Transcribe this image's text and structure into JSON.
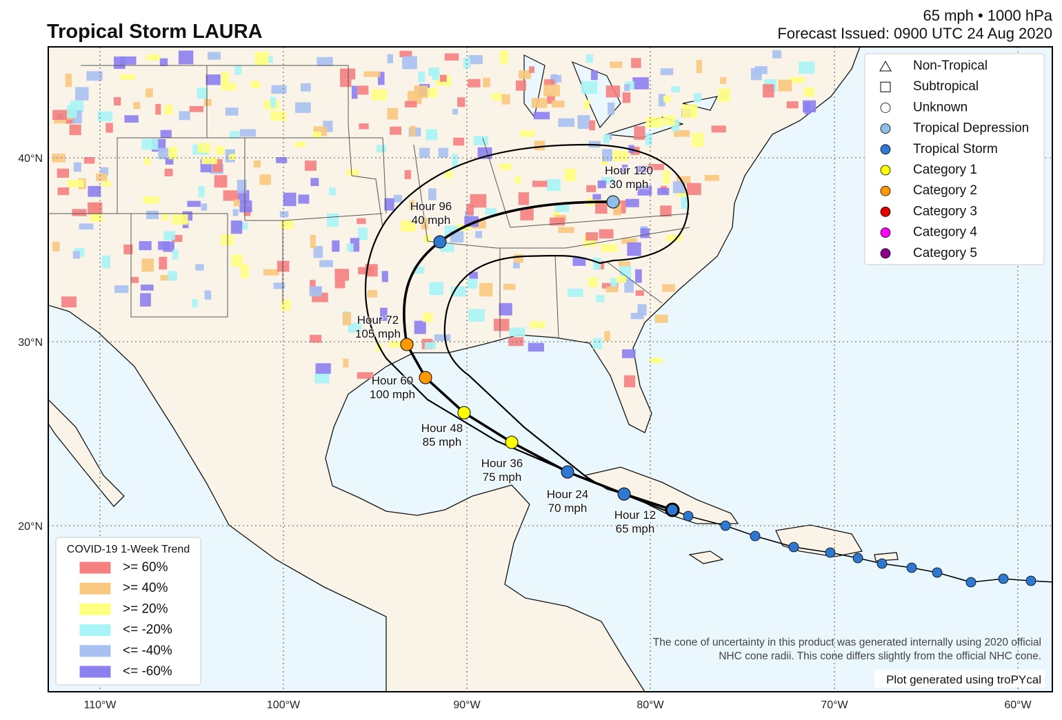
{
  "header": {
    "title": "Tropical Storm LAURA",
    "intensity": "65 mph • 1000 hPa",
    "issued": "Forecast Issued: 0900 UTC 24 Aug 2020"
  },
  "axes": {
    "latitudes": [
      "40°N",
      "30°N",
      "20°N"
    ],
    "longitudes": [
      "110°W",
      "100°W",
      "90°W",
      "80°W",
      "70°W",
      "60°W"
    ]
  },
  "forecast_points": [
    {
      "hour": "Hour 12",
      "wind": "65 mph",
      "color": "#2f78cf"
    },
    {
      "hour": "Hour 24",
      "wind": "70 mph",
      "color": "#2f78cf"
    },
    {
      "hour": "Hour 36",
      "wind": "75 mph",
      "color": "#ffff00"
    },
    {
      "hour": "Hour 48",
      "wind": "85 mph",
      "color": "#ffff00"
    },
    {
      "hour": "Hour 60",
      "wind": "100 mph",
      "color": "#ff9900"
    },
    {
      "hour": "Hour 72",
      "wind": "105 mph",
      "color": "#ff9900"
    },
    {
      "hour": "Hour 96",
      "wind": "40 mph",
      "color": "#2f78cf"
    },
    {
      "hour": "Hour 120",
      "wind": "30 mph",
      "color": "#8fbde8"
    }
  ],
  "storm_legend": [
    {
      "label": "Non-Tropical",
      "marker": "triangle",
      "color": "#ffffff"
    },
    {
      "label": "Subtropical",
      "marker": "square",
      "color": "#ffffff"
    },
    {
      "label": "Unknown",
      "marker": "circle",
      "color": "#ffffff"
    },
    {
      "label": "Tropical Depression",
      "marker": "circle",
      "color": "#8fbde8"
    },
    {
      "label": "Tropical Storm",
      "marker": "circle",
      "color": "#2f78cf"
    },
    {
      "label": "Category 1",
      "marker": "circle",
      "color": "#ffff00"
    },
    {
      "label": "Category 2",
      "marker": "circle",
      "color": "#ff9900"
    },
    {
      "label": "Category 3",
      "marker": "circle",
      "color": "#e00000"
    },
    {
      "label": "Category 4",
      "marker": "circle",
      "color": "#ff00ff"
    },
    {
      "label": "Category 5",
      "marker": "circle",
      "color": "#8b008b"
    }
  ],
  "covid_legend": {
    "title": "COVID-19 1-Week Trend",
    "items": [
      {
        "label": ">= 60%",
        "color": "#f48080"
      },
      {
        "label": ">= 40%",
        "color": "#f8c880"
      },
      {
        "label": ">= 20%",
        "color": "#ffff80"
      },
      {
        "label": "<= -20%",
        "color": "#a8f4f6"
      },
      {
        "label": "<= -40%",
        "color": "#a8c0f2"
      },
      {
        "label": "<= -60%",
        "color": "#8c80f0"
      }
    ]
  },
  "notes": {
    "cone_note_1": "The cone of uncertainty in this product was generated internally using 2020 official",
    "cone_note_2": "NHC cone radii. This cone differs slightly from the official NHC cone.",
    "credit": "Plot generated using troPYcal"
  }
}
